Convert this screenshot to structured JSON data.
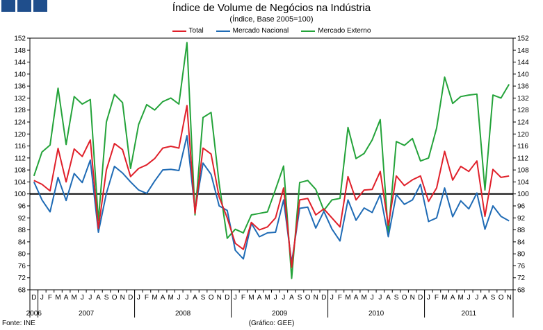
{
  "header": {
    "title": "Índice de Volume de Negócios na Indústria",
    "subtitle": "(Índice, Base 2005=100)"
  },
  "footer": {
    "source": "Fonte: INE",
    "credit": "(Gráfico: GEE)"
  },
  "chart_data": {
    "type": "line",
    "title": "Índice de Volume de Negócios na Indústria",
    "subtitle": "(Índice, Base 2005=100)",
    "ylim": [
      68,
      152
    ],
    "yticks": [
      68,
      72,
      76,
      80,
      84,
      88,
      92,
      96,
      100,
      104,
      108,
      112,
      116,
      120,
      124,
      128,
      132,
      136,
      140,
      144,
      148,
      152
    ],
    "reference_line": 100,
    "x": [
      "D",
      "J",
      "F",
      "M",
      "A",
      "M",
      "J",
      "J",
      "A",
      "S",
      "O",
      "N",
      "D",
      "J",
      "F",
      "M",
      "A",
      "M",
      "J",
      "J",
      "A",
      "S",
      "O",
      "N",
      "D",
      "J",
      "F",
      "M",
      "A",
      "M",
      "J",
      "J",
      "A",
      "S",
      "O",
      "N",
      "D",
      "J",
      "F",
      "M",
      "A",
      "M",
      "J",
      "J",
      "A",
      "S",
      "O",
      "N",
      "D",
      "J",
      "F",
      "M",
      "A",
      "M",
      "J",
      "J",
      "A",
      "S",
      "O",
      "N"
    ],
    "years": [
      {
        "label": "2006",
        "start": 0,
        "end": 0
      },
      {
        "label": "2007",
        "start": 1,
        "end": 12
      },
      {
        "label": "2008",
        "start": 13,
        "end": 24
      },
      {
        "label": "2009",
        "start": 25,
        "end": 36
      },
      {
        "label": "2010",
        "start": 37,
        "end": 48
      },
      {
        "label": "2011",
        "start": 49,
        "end": 59
      }
    ],
    "series": [
      {
        "name": "Total",
        "color": "#e0202a",
        "values": [
          104.5,
          103.2,
          101.0,
          115.2,
          104.0,
          115.0,
          112.5,
          118.0,
          88.5,
          108.0,
          116.8,
          114.8,
          105.8,
          108.5,
          109.7,
          111.8,
          115.3,
          115.9,
          115.3,
          129.5,
          93.5,
          115.3,
          113.3,
          99.0,
          92.0,
          83.5,
          81.5,
          90.5,
          88.0,
          89.0,
          92.0,
          102.0,
          75.5,
          98.0,
          98.5,
          93.0,
          95.0,
          92.0,
          89.0,
          105.8,
          98.0,
          101.3,
          101.5,
          107.5,
          89.5,
          106.0,
          102.8,
          104.7,
          106.0,
          97.5,
          102.0,
          114.2,
          104.6,
          109.2,
          107.5,
          111.0,
          92.5,
          108.2,
          105.5,
          106.0
        ]
      },
      {
        "name": "Mercado Nacional",
        "color": "#1f6bb5",
        "values": [
          104.0,
          98.0,
          94.0,
          105.5,
          97.8,
          106.8,
          103.8,
          111.3,
          87.2,
          100.2,
          109.2,
          107.0,
          104.0,
          101.3,
          100.2,
          104.3,
          108.0,
          108.2,
          107.8,
          119.4,
          94.5,
          110.3,
          106.5,
          96.0,
          94.5,
          81.2,
          78.3,
          90.2,
          85.7,
          87.0,
          87.2,
          98.0,
          77.0,
          95.2,
          95.6,
          88.6,
          94.2,
          88.3,
          84.3,
          98.0,
          91.2,
          95.3,
          93.8,
          99.8,
          85.7,
          99.8,
          96.5,
          98.0,
          103.2,
          90.8,
          92.0,
          102.0,
          92.4,
          97.7,
          95.0,
          100.3,
          88.2,
          96.0,
          92.5,
          91.0
        ]
      },
      {
        "name": "Mercado Externo",
        "color": "#24a33a",
        "values": [
          106.0,
          114.0,
          116.3,
          135.3,
          116.5,
          132.5,
          130.0,
          131.5,
          91.0,
          124.0,
          133.2,
          130.5,
          108.5,
          123.2,
          129.8,
          128.0,
          130.8,
          132.0,
          130.0,
          150.5,
          93.0,
          125.5,
          127.2,
          103.5,
          85.2,
          88.2,
          87.0,
          93.0,
          93.5,
          94.0,
          101.5,
          109.3,
          71.8,
          103.8,
          104.5,
          101.5,
          94.5,
          98.0,
          98.5,
          122.2,
          111.8,
          113.5,
          118.0,
          124.8,
          86.8,
          117.5,
          116.2,
          118.5,
          111.0,
          112.0,
          122.0,
          139.0,
          130.2,
          132.5,
          133.0,
          133.3,
          101.3,
          133.0,
          132.0,
          136.6
        ]
      }
    ]
  }
}
